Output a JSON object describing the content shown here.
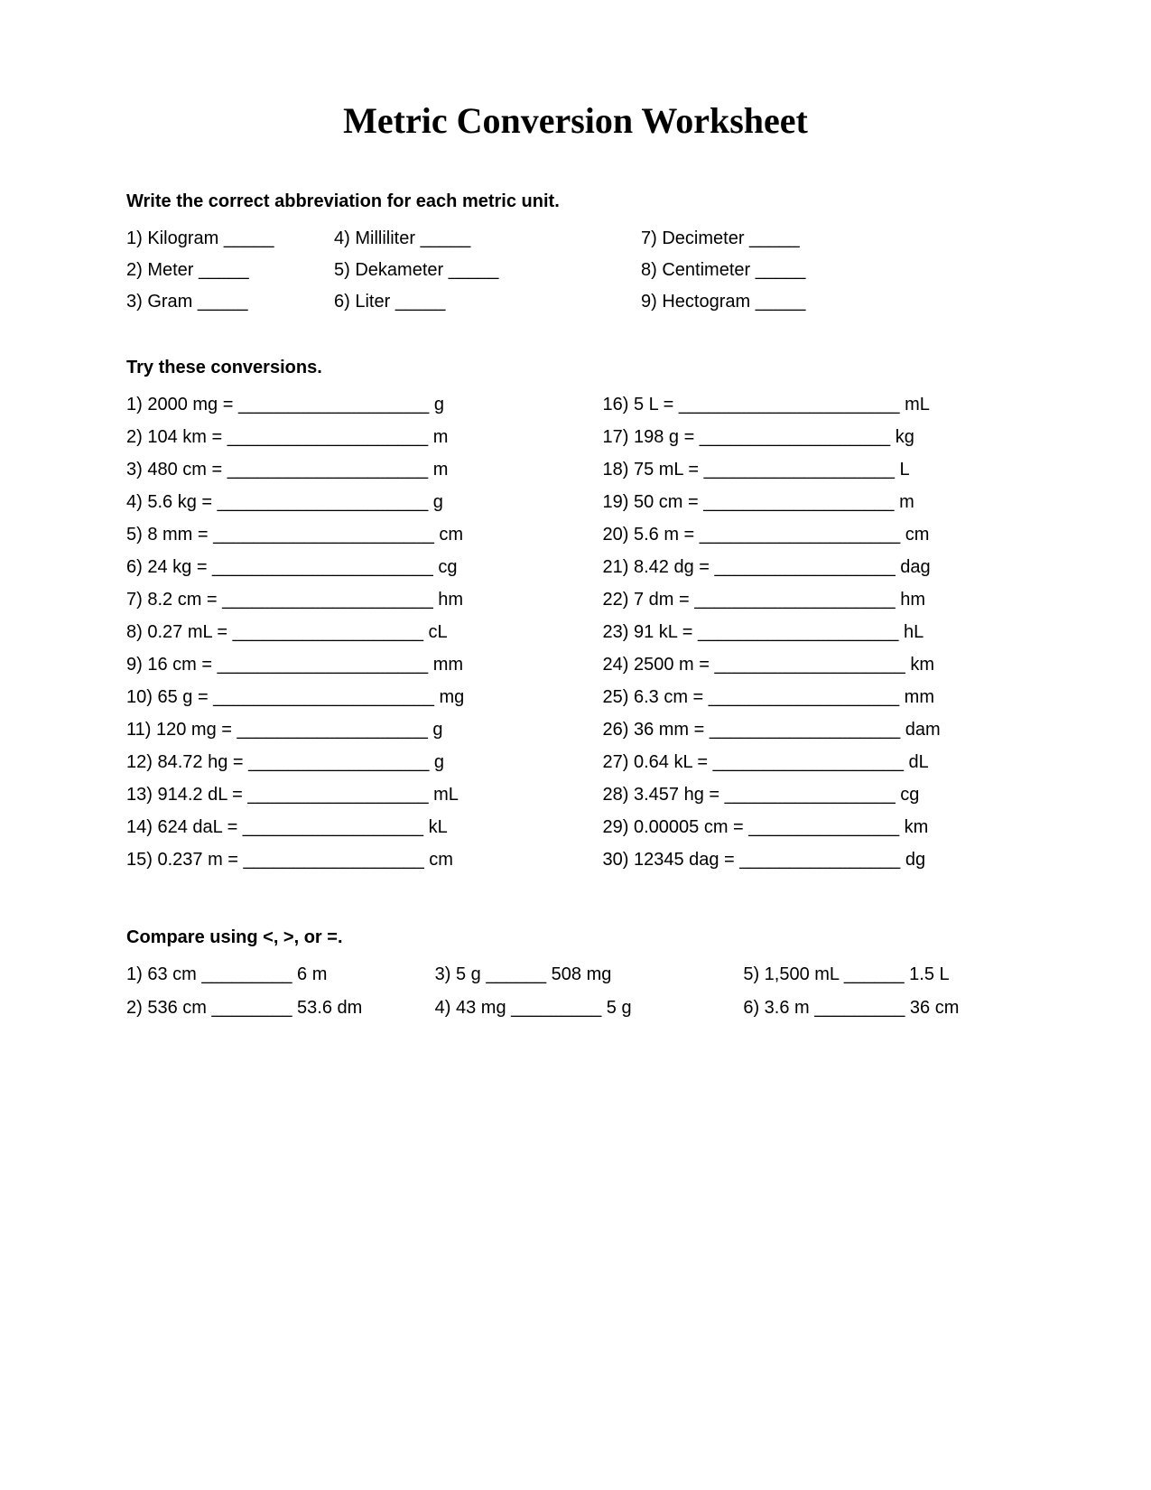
{
  "title": "Metric Conversion Worksheet",
  "section1_heading": "Write the correct abbreviation for each metric unit.",
  "abbrev": [
    {
      "n": "1",
      "label": "Kilogram",
      "blank": "_____"
    },
    {
      "n": "4",
      "label": "Milliliter",
      "blank": "_____"
    },
    {
      "n": "7",
      "label": "Decimeter",
      "blank": "_____"
    },
    {
      "n": "2",
      "label": "Meter",
      "blank": "_____"
    },
    {
      "n": "5",
      "label": "Dekameter",
      "blank": "_____"
    },
    {
      "n": "8",
      "label": "Centimeter",
      "blank": "_____"
    },
    {
      "n": "3",
      "label": "Gram",
      "blank": "_____"
    },
    {
      "n": "6",
      "label": "Liter",
      "blank": "_____"
    },
    {
      "n": "9",
      "label": "Hectogram",
      "blank": "_____"
    }
  ],
  "section2_heading": "Try these conversions.",
  "conv_left": [
    {
      "n": "1",
      "lhs": "2000 mg",
      "blank": "___________________",
      "unit": "g"
    },
    {
      "n": "2",
      "lhs": "104 km",
      "blank": "____________________",
      "unit": "m"
    },
    {
      "n": "3",
      "lhs": "480 cm",
      "blank": "____________________",
      "unit": "m"
    },
    {
      "n": "4",
      "lhs": "5.6 kg",
      "blank": "_____________________",
      "unit": "g"
    },
    {
      "n": "5",
      "lhs": "8 mm",
      "blank": "______________________",
      "unit": "cm"
    },
    {
      "n": "6",
      "lhs": "24 kg",
      "blank": "______________________",
      "unit": "cg"
    },
    {
      "n": "7",
      "lhs": "8.2 cm",
      "blank": "_____________________",
      "unit": "hm"
    },
    {
      "n": "8",
      "lhs": "0.27 mL",
      "blank": "___________________",
      "unit": "cL"
    },
    {
      "n": "9",
      "lhs": "16 cm",
      "blank": "_____________________",
      "unit": "mm"
    },
    {
      "n": "10",
      "lhs": "65 g",
      "blank": "______________________",
      "unit": "mg"
    },
    {
      "n": "11",
      "lhs": "120 mg",
      "blank": "___________________",
      "unit": "g"
    },
    {
      "n": "12",
      "lhs": "84.72 hg",
      "blank": "__________________",
      "unit": "g"
    },
    {
      "n": "13",
      "lhs": "914.2 dL",
      "blank": "__________________",
      "unit": "mL"
    },
    {
      "n": "14",
      "lhs": "624 daL",
      "blank": "__________________",
      "unit": "kL"
    },
    {
      "n": "15",
      "lhs": "0.237 m",
      "blank": "__________________",
      "unit": "cm"
    }
  ],
  "conv_right": [
    {
      "n": "16",
      "lhs": "5 L",
      "blank": "______________________",
      "unit": "mL"
    },
    {
      "n": "17",
      "lhs": "198 g",
      "blank": "___________________",
      "unit": "kg"
    },
    {
      "n": "18",
      "lhs": "75 mL",
      "blank": "___________________",
      "unit": "L"
    },
    {
      "n": "19",
      "lhs": "50 cm",
      "blank": "___________________",
      "unit": "m"
    },
    {
      "n": "20",
      "lhs": "5.6 m",
      "blank": "____________________",
      "unit": "cm"
    },
    {
      "n": "21",
      "lhs": "8.42 dg",
      "blank": "__________________",
      "unit": "dag"
    },
    {
      "n": "22",
      "lhs": "7 dm",
      "blank": "____________________",
      "unit": "hm"
    },
    {
      "n": "23",
      "lhs": "91 kL",
      "blank": "____________________",
      "unit": "hL"
    },
    {
      "n": "24",
      "lhs": "2500 m",
      "blank": "___________________",
      "unit": "km"
    },
    {
      "n": "25",
      "lhs": "6.3 cm",
      "blank": "___________________",
      "unit": "mm"
    },
    {
      "n": "26",
      "lhs": "36 mm",
      "blank": "___________________",
      "unit": "dam"
    },
    {
      "n": "27",
      "lhs": "0.64 kL",
      "blank": "___________________",
      "unit": "dL"
    },
    {
      "n": "28",
      "lhs": "3.457 hg",
      "blank": "_________________",
      "unit": "cg"
    },
    {
      "n": "29",
      "lhs": "0.00005 cm",
      "blank": "_______________",
      "unit": "km"
    },
    {
      "n": "30",
      "lhs": "12345 dag",
      "blank": "________________",
      "unit": "dg"
    }
  ],
  "section3_heading": "Compare using <, >, or =.",
  "compare": [
    {
      "n": "1",
      "lhs": "63 cm",
      "blank": "_________",
      "rhs": "6 m"
    },
    {
      "n": "3",
      "lhs": "5 g",
      "blank": "______",
      "rhs": "508 mg"
    },
    {
      "n": "5",
      "lhs": "1,500 mL",
      "blank": "______",
      "rhs": "1.5 L"
    },
    {
      "n": "2",
      "lhs": "536 cm",
      "blank": "________",
      "rhs": "53.6 dm"
    },
    {
      "n": "4",
      "lhs": "43 mg",
      "blank": "_________",
      "rhs": "5 g"
    },
    {
      "n": "6",
      "lhs": "3.6 m",
      "blank": "_________",
      "rhs": "36 cm"
    }
  ]
}
